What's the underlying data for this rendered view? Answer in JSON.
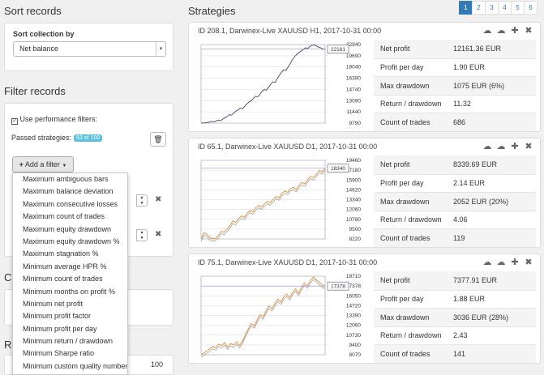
{
  "left": {
    "sort_title": "Sort records",
    "sort_label": "Sort collection by",
    "sort_value": "Net balance",
    "filter_title": "Filter records",
    "use_filters_label": "Use performance filters:",
    "passed_label": "Passed strategies:",
    "passed_badge": "53 of 100",
    "add_filter_label": "Add a filter",
    "peek_c": "Co",
    "peek_r": "Re",
    "peek_value": "100",
    "filter_options": [
      "Maximum ambiguous bars",
      "Maximum balance deviation",
      "Maximum consecutive losses",
      "Maximum count of trades",
      "Maximum equity drawdown",
      "Maximum equity drawdown %",
      "Maximum stagnation %",
      "Minimum average HPR %",
      "Minimum count of trades",
      "Minimum months on profit %",
      "Minimum net profit",
      "Minimum profit factor",
      "Minimum profit per day",
      "Minimum return / drawdown",
      "Minimum Sharpe ratio",
      "Minimum custom quality number"
    ]
  },
  "right": {
    "title": "Strategies",
    "pages": [
      "1",
      "2",
      "3",
      "4",
      "5",
      "6"
    ],
    "active_page": "1",
    "icons": [
      "cloud-download-icon",
      "cloud-upload-icon",
      "plus-icon",
      "close-icon"
    ],
    "stat_labels": [
      "Net profit",
      "Profit per day",
      "Max drawdown",
      "Return / drawdown",
      "Count of trades"
    ],
    "cards": [
      {
        "title": "ID 208.1, Darwinex-Live XAUUSD H1, 2017-10-31 00:00",
        "stats": [
          "12161.36 EUR",
          "1.90 EUR",
          "1075 EUR (6%)",
          "11.32",
          "686"
        ],
        "chart_data": {
          "type": "line",
          "yticks": [
            "22940",
            "19690",
            "18040",
            "16390",
            "14740",
            "13090",
            "11440",
            "9790"
          ],
          "last_value": "22161",
          "ylim": [
            9790,
            22940
          ],
          "color": "#444466",
          "values": [
            9790,
            9800,
            9850,
            9900,
            9950,
            10100,
            10000,
            10150,
            10300,
            10200,
            10450,
            10700,
            10900,
            11200,
            11100,
            11500,
            11800,
            12000,
            12300,
            12200,
            12600,
            13000,
            13300,
            13500,
            13900,
            14300,
            14200,
            14600,
            15100,
            15400,
            15300,
            15800,
            16300,
            16700,
            16600,
            17200,
            17800,
            18300,
            18700,
            18600,
            19200,
            19800,
            20400,
            20900,
            21300,
            21600,
            21900,
            22100,
            22400,
            22300,
            22600,
            22800,
            22900,
            22700,
            22500,
            22400,
            22200,
            22161
          ]
        }
      },
      {
        "title": "ID 65.1, Darwinex-Live XAUUSD D1, 2017-10-31 00:00",
        "stats": [
          "8339.69 EUR",
          "2.14 EUR",
          "2052 EUR (20%)",
          "4.06",
          "119"
        ],
        "chart_data": {
          "type": "line",
          "yticks": [
            "19460",
            "17180",
            "15900",
            "14620",
            "13340",
            "12060",
            "10780",
            "9500",
            "8220"
          ],
          "last_value": "18340",
          "ylim": [
            8220,
            19460
          ],
          "color": "#e08a30",
          "values": [
            8220,
            9100,
            8900,
            8400,
            8250,
            8300,
            8700,
            9300,
            9200,
            9600,
            10100,
            10800,
            10600,
            11100,
            11500,
            11300,
            11900,
            12300,
            12100,
            12700,
            13000,
            12800,
            13300,
            13600,
            13400,
            13900,
            14300,
            14100,
            14700,
            15100,
            14900,
            15400,
            15600,
            15300,
            15900,
            16300,
            16100,
            16700,
            17200,
            17000,
            17500,
            18000,
            17800,
            18340
          ]
        }
      },
      {
        "title": "ID 75.1, Darwinex-Live XAUUSD D1, 2017-10-31 00:00",
        "stats": [
          "7377.91 EUR",
          "1.88 EUR",
          "3036 EUR (28%)",
          "2.43",
          "141"
        ],
        "chart_data": {
          "type": "line",
          "yticks": [
            "18710",
            "17378",
            "16050",
            "14720",
            "13390",
            "12060",
            "10730",
            "9400",
            "8070"
          ],
          "last_value": "17378",
          "ylim": [
            8070,
            18710
          ],
          "color": "#e08a30",
          "values": [
            8070,
            8300,
            8600,
            8900,
            9200,
            9000,
            9500,
            9300,
            9700,
            9100,
            9600,
            9400,
            9800,
            9300,
            9900,
            10800,
            11600,
            12300,
            12000,
            12800,
            13500,
            13200,
            14000,
            14700,
            14300,
            15000,
            15600,
            15200,
            15900,
            16300,
            15800,
            16500,
            17000,
            16400,
            17200,
            17800,
            17400,
            18100,
            18600,
            18200,
            17900,
            17500,
            17378
          ]
        }
      }
    ]
  }
}
